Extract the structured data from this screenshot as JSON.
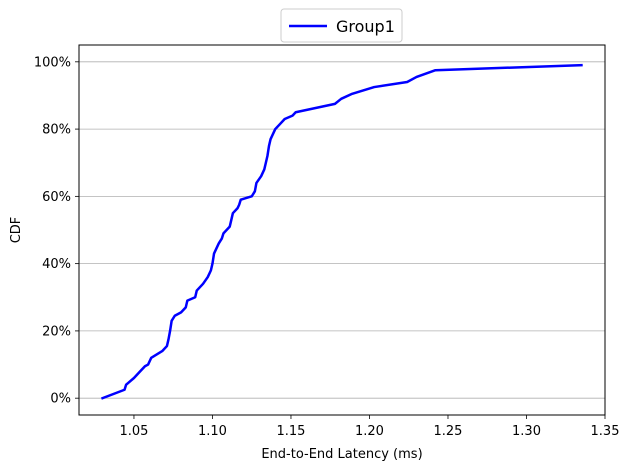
{
  "chart_data": {
    "type": "line",
    "xlabel": "End-to-End Latency (ms)",
    "ylabel": "CDF",
    "xlim": [
      1.015,
      1.35
    ],
    "ylim": [
      -0.05,
      1.05
    ],
    "x_ticks": [
      1.05,
      1.1,
      1.15,
      1.2,
      1.25,
      1.3,
      1.35
    ],
    "x_tick_labels": [
      "1.05",
      "1.10",
      "1.15",
      "1.20",
      "1.25",
      "1.30",
      "1.35"
    ],
    "y_ticks": [
      0,
      0.2,
      0.4,
      0.6,
      0.8,
      1.0
    ],
    "y_tick_labels": [
      "0%",
      "20%",
      "40%",
      "60%",
      "80%",
      "100%"
    ],
    "grid": "y-major",
    "legend_position": "top-center",
    "series": [
      {
        "name": "Group1",
        "color": "#0000ff",
        "points": [
          [
            1.03,
            0.0
          ],
          [
            1.044,
            0.025
          ],
          [
            1.045,
            0.04
          ],
          [
            1.05,
            0.06
          ],
          [
            1.054,
            0.08
          ],
          [
            1.057,
            0.095
          ],
          [
            1.059,
            0.1
          ],
          [
            1.061,
            0.12
          ],
          [
            1.068,
            0.14
          ],
          [
            1.071,
            0.155
          ],
          [
            1.072,
            0.175
          ],
          [
            1.073,
            0.2
          ],
          [
            1.074,
            0.23
          ],
          [
            1.076,
            0.245
          ],
          [
            1.08,
            0.255
          ],
          [
            1.083,
            0.27
          ],
          [
            1.084,
            0.29
          ],
          [
            1.089,
            0.3
          ],
          [
            1.09,
            0.32
          ],
          [
            1.094,
            0.34
          ],
          [
            1.097,
            0.36
          ],
          [
            1.099,
            0.38
          ],
          [
            1.1,
            0.4
          ],
          [
            1.101,
            0.43
          ],
          [
            1.104,
            0.46
          ],
          [
            1.106,
            0.475
          ],
          [
            1.107,
            0.49
          ],
          [
            1.111,
            0.51
          ],
          [
            1.112,
            0.53
          ],
          [
            1.113,
            0.55
          ],
          [
            1.116,
            0.565
          ],
          [
            1.117,
            0.575
          ],
          [
            1.118,
            0.59
          ],
          [
            1.125,
            0.6
          ],
          [
            1.127,
            0.615
          ],
          [
            1.128,
            0.64
          ],
          [
            1.131,
            0.66
          ],
          [
            1.133,
            0.68
          ],
          [
            1.134,
            0.7
          ],
          [
            1.135,
            0.72
          ],
          [
            1.136,
            0.75
          ],
          [
            1.137,
            0.77
          ],
          [
            1.14,
            0.8
          ],
          [
            1.143,
            0.815
          ],
          [
            1.146,
            0.83
          ],
          [
            1.151,
            0.84
          ],
          [
            1.153,
            0.85
          ],
          [
            1.178,
            0.875
          ],
          [
            1.182,
            0.89
          ],
          [
            1.189,
            0.905
          ],
          [
            1.196,
            0.915
          ],
          [
            1.203,
            0.925
          ],
          [
            1.224,
            0.94
          ],
          [
            1.23,
            0.955
          ],
          [
            1.236,
            0.965
          ],
          [
            1.242,
            0.975
          ],
          [
            1.335,
            0.99
          ]
        ]
      }
    ]
  }
}
